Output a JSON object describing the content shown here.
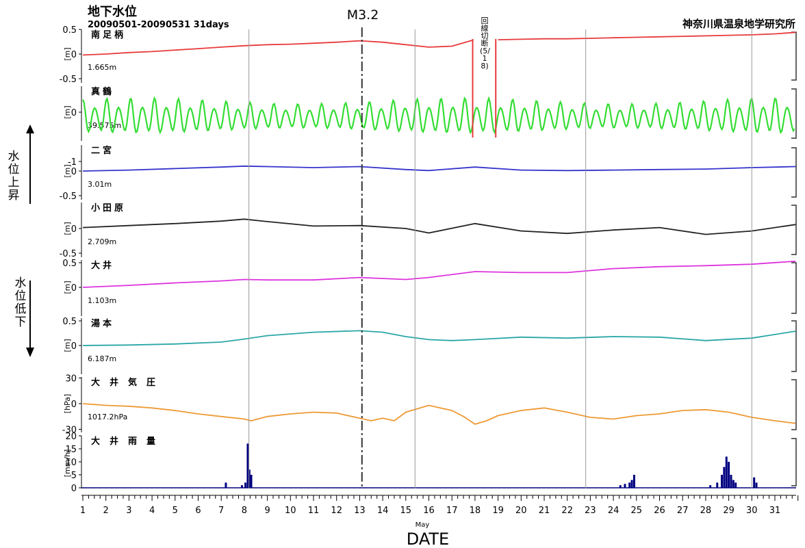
{
  "title": "地下水位",
  "period": "20090501-20090531 31days",
  "institute": "神奈川県温泉地学研究所",
  "event_label": "M3.2",
  "gap_note": "回線切断(5/18)",
  "side_labels": {
    "rise": "水位上昇",
    "fall": "水位低下"
  },
  "colors": {
    "red": "#e8393a",
    "green": "#33dd33",
    "blue": "#3333cc",
    "black": "#222222",
    "magenta": "#dd33dd",
    "teal": "#2aa6a6",
    "orange": "#ee9933",
    "navy": "#000080"
  },
  "chart_data": [
    {
      "type": "line",
      "name": "南足柄",
      "unit": "[m]",
      "ylim": [
        -0.5,
        0.5
      ],
      "yticks": [
        "0.5",
        "0",
        "-0.5"
      ],
      "baseline": "1.665m",
      "color": "#e8393a",
      "x": [
        1,
        2,
        3,
        4,
        5,
        6,
        7,
        8,
        9,
        10,
        11,
        12,
        13,
        14,
        15,
        16,
        17,
        17.9,
        18.9,
        19,
        20,
        21,
        22,
        23,
        24,
        25,
        26,
        27,
        28,
        29,
        30,
        31,
        31.9
      ],
      "y": [
        -0.02,
        0,
        0.03,
        0.05,
        0.08,
        0.11,
        0.14,
        0.17,
        0.19,
        0.2,
        0.22,
        0.24,
        0.27,
        0.24,
        0.19,
        0.14,
        0.16,
        0.28,
        null,
        0.29,
        0.3,
        0.31,
        0.31,
        0.32,
        0.33,
        0.34,
        0.35,
        0.36,
        0.37,
        0.38,
        0.39,
        0.41,
        0.44
      ]
    },
    {
      "type": "line",
      "name": "真鶴",
      "unit": "[m]",
      "ylim": [
        -1,
        0.5
      ],
      "yticks": [
        "0",
        "-1"
      ],
      "baseline": "39.575m",
      "color": "#33dd33",
      "pattern": "semidiurnal tide, amplitude ~0.35 m"
    },
    {
      "type": "line",
      "name": "二宮",
      "unit": "[m]",
      "ylim": [
        -0.5,
        0.5
      ],
      "yticks": [
        "0",
        "-0.5"
      ],
      "baseline": "3.01m",
      "color": "#3333cc",
      "x": [
        1,
        3,
        5,
        7,
        8,
        9,
        11,
        13,
        15,
        16,
        18,
        20,
        22,
        24,
        26,
        28,
        30,
        31.9
      ],
      "y": [
        0,
        0.02,
        0.05,
        0.08,
        0.1,
        0.09,
        0.07,
        0.09,
        0.03,
        0.01,
        0.08,
        0.02,
        0.01,
        0.02,
        0.03,
        0.04,
        0.07,
        0.09
      ]
    },
    {
      "type": "line",
      "name": "小田原",
      "unit": "[m]",
      "ylim": [
        -0.5,
        0.5
      ],
      "yticks": [
        "0",
        "-0.5"
      ],
      "baseline": "2.709m",
      "color": "#222222",
      "x": [
        1,
        3,
        5,
        7,
        8,
        9,
        11,
        13,
        15,
        16,
        18,
        20,
        22,
        24,
        26,
        28,
        30,
        31.9
      ],
      "y": [
        0.02,
        0.06,
        0.1,
        0.15,
        0.19,
        0.14,
        0.05,
        0.06,
        0,
        -0.09,
        0.1,
        -0.05,
        -0.1,
        -0.03,
        0.02,
        -0.12,
        -0.05,
        0.08
      ]
    },
    {
      "type": "line",
      "name": "大井",
      "unit": "[m]",
      "ylim": [
        -0.5,
        0.5
      ],
      "yticks": [
        "0.5",
        "0"
      ],
      "baseline": "1.103m",
      "color": "#dd33dd",
      "x": [
        1,
        3,
        5,
        7,
        8,
        9,
        11,
        13,
        15,
        16,
        18,
        20,
        22,
        24,
        26,
        28,
        30,
        31.9
      ],
      "y": [
        0,
        0.04,
        0.09,
        0.13,
        0.16,
        0.15,
        0.15,
        0.2,
        0.16,
        0.2,
        0.32,
        0.3,
        0.3,
        0.38,
        0.42,
        0.44,
        0.47,
        0.53
      ]
    },
    {
      "type": "line",
      "name": "湯本",
      "unit": "[m]",
      "ylim": [
        -0.5,
        0.5
      ],
      "yticks": [
        "0.5",
        "0"
      ],
      "baseline": "6.187m",
      "color": "#2aa6a6",
      "x": [
        1,
        3,
        5,
        7,
        8,
        9,
        11,
        13,
        14,
        15,
        16,
        17,
        18,
        20,
        22,
        24,
        26,
        28,
        30,
        31.9
      ],
      "y": [
        0,
        0.01,
        0.03,
        0.07,
        0.13,
        0.2,
        0.27,
        0.3,
        0.27,
        0.18,
        0.12,
        0.1,
        0.12,
        0.17,
        0.15,
        0.18,
        0.17,
        0.1,
        0.15,
        0.29
      ]
    },
    {
      "type": "line",
      "name": "大井気圧",
      "unit": "[hPa]",
      "ylim": [
        -30,
        30
      ],
      "yticks": [
        "30",
        "0",
        "-30"
      ],
      "baseline": "1017.2hPa",
      "color": "#ee9933",
      "x": [
        1,
        2,
        3,
        4,
        5,
        6,
        7,
        8,
        8.3,
        9,
        10,
        11,
        12,
        13,
        13.5,
        14,
        14.5,
        15,
        16,
        17,
        17.5,
        18,
        18.5,
        19,
        20,
        21,
        22,
        23,
        24,
        25,
        26,
        27,
        28,
        29,
        30,
        31,
        31.9
      ],
      "y": [
        0,
        -2,
        -3,
        -5,
        -8,
        -12,
        -15,
        -18,
        -20,
        -15,
        -12,
        -10,
        -11,
        -17,
        -20,
        -17,
        -20,
        -10,
        -2,
        -8,
        -15,
        -24,
        -20,
        -14,
        -8,
        -5,
        -10,
        -16,
        -18,
        -14,
        -12,
        -8,
        -7,
        -10,
        -16,
        -20,
        -23
      ]
    },
    {
      "type": "bar",
      "name": "大井雨量",
      "unit": "[mm/h]",
      "ylim": [
        0,
        20
      ],
      "yticks": [
        "20",
        "15",
        "10",
        "5",
        "0"
      ],
      "color": "#000080",
      "x": [
        7.2,
        7.9,
        8.05,
        8.15,
        8.22,
        8.3,
        24.3,
        24.5,
        24.7,
        24.8,
        24.9,
        28.2,
        28.5,
        28.7,
        28.8,
        28.9,
        29.0,
        29.1,
        29.2,
        29.3,
        30.1,
        30.2
      ],
      "y": [
        2,
        1,
        2,
        17,
        7,
        5,
        1,
        1.5,
        2,
        3,
        5,
        1,
        2,
        5,
        8,
        12,
        10,
        5,
        3,
        2,
        4,
        2
      ]
    }
  ],
  "x_axis": {
    "ticks": [
      "1",
      "2",
      "3",
      "4",
      "5",
      "6",
      "7",
      "8",
      "9",
      "10",
      "11",
      "12",
      "13",
      "14",
      "15",
      "16",
      "17",
      "18",
      "19",
      "20",
      "21",
      "22",
      "23",
      "24",
      "25",
      "26",
      "27",
      "28",
      "29",
      "30",
      "31"
    ],
    "month": "May",
    "label": "DATE"
  },
  "vlines_days": [
    8.2,
    15.4,
    22.8,
    30
  ],
  "event_day": 13.1
}
